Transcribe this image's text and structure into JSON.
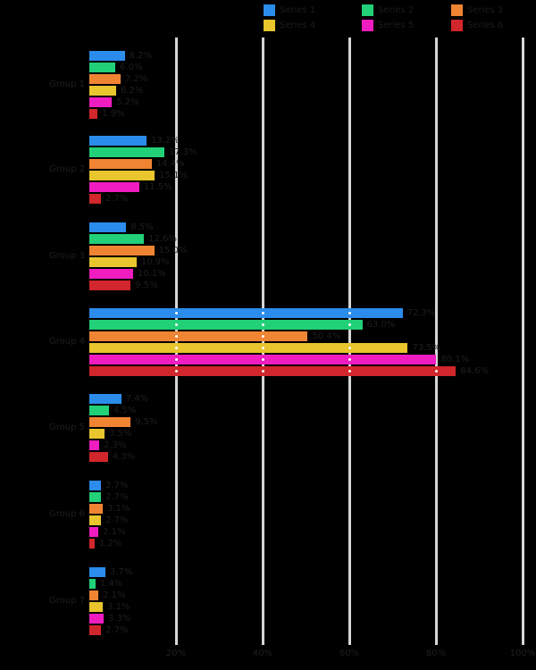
{
  "figure": {
    "background_color": "#000000",
    "gridline_color": "#d6d6d6",
    "text_color": "#1e1e1e"
  },
  "chart_data": {
    "type": "bar",
    "orientation": "horizontal",
    "grid": true,
    "legend_position": "top",
    "xlim": [
      0,
      100
    ],
    "xticks": [
      20,
      40,
      60,
      80,
      100
    ],
    "tick_format": "percent",
    "categories": [
      "Group 1",
      "Group 2",
      "Group 3",
      "Group 4",
      "Group 5",
      "Group 6",
      "Group 7"
    ],
    "series": [
      {
        "name": "Series 1",
        "color": "#2b8cec",
        "values": [
          8.2,
          13.2,
          8.5,
          72.3,
          7.4,
          2.7,
          3.7
        ]
      },
      {
        "name": "Series 2",
        "color": "#22d078",
        "values": [
          6.0,
          17.3,
          12.6,
          63.0,
          4.5,
          2.7,
          1.4
        ]
      },
      {
        "name": "Series 3",
        "color": "#ef8433",
        "values": [
          7.2,
          14.4,
          15.0,
          50.4,
          9.5,
          3.1,
          2.1
        ]
      },
      {
        "name": "Series 4",
        "color": "#e9c52e",
        "values": [
          6.2,
          15.1,
          10.9,
          73.5,
          3.5,
          2.7,
          3.1
        ]
      },
      {
        "name": "Series 5",
        "color": "#ef1cc0",
        "values": [
          5.2,
          11.5,
          10.1,
          80.1,
          2.3,
          2.1,
          3.3
        ]
      },
      {
        "name": "Series 6",
        "color": "#d1262b",
        "values": [
          1.9,
          2.7,
          9.5,
          84.6,
          4.3,
          1.2,
          2.7
        ]
      }
    ],
    "value_label_suffix": "%"
  }
}
